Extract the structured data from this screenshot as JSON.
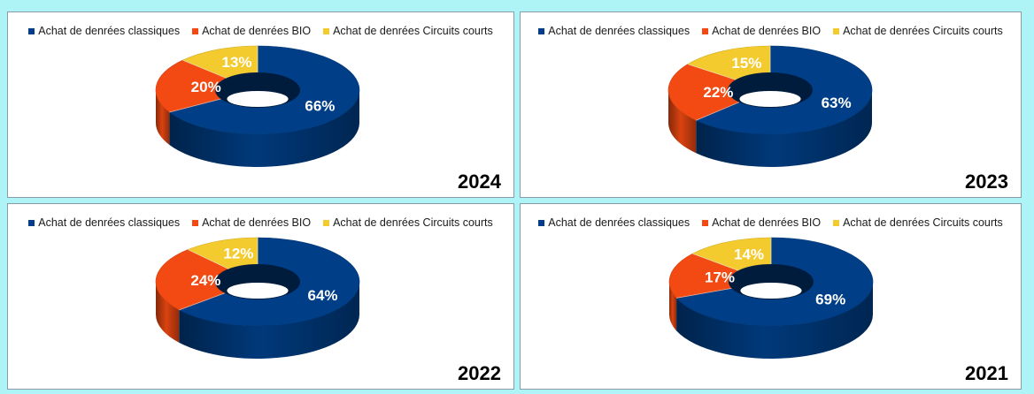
{
  "legend_labels": [
    "Achat de denrées classiques",
    "Achat de denrées BIO",
    "Achat de denrées Circuits courts"
  ],
  "colors": {
    "classiques": "#003f88",
    "bio": "#f24a12",
    "circuits": "#f3cb2e"
  },
  "chart_data": [
    {
      "type": "pie",
      "title": "2024",
      "categories": [
        "Achat de denrées classiques",
        "Achat de denrées BIO",
        "Achat de denrées Circuits courts"
      ],
      "values": [
        66,
        20,
        13
      ],
      "labels": [
        "66%",
        "20%",
        "13%"
      ]
    },
    {
      "type": "pie",
      "title": "2023",
      "categories": [
        "Achat de denrées classiques",
        "Achat de denrées BIO",
        "Achat de denrées Circuits courts"
      ],
      "values": [
        63,
        22,
        15
      ],
      "labels": [
        "63%",
        "22%",
        "15%"
      ]
    },
    {
      "type": "pie",
      "title": "2022",
      "categories": [
        "Achat de denrées classiques",
        "Achat de denrées BIO",
        "Achat de denrées Circuits courts"
      ],
      "values": [
        64,
        24,
        12
      ],
      "labels": [
        "64%",
        "24%",
        "12%"
      ]
    },
    {
      "type": "pie",
      "title": "2021",
      "categories": [
        "Achat de denrées classiques",
        "Achat de denrées BIO",
        "Achat de denrées Circuits courts"
      ],
      "values": [
        69,
        17,
        14
      ],
      "labels": [
        "69%",
        "17%",
        "14%"
      ]
    }
  ]
}
